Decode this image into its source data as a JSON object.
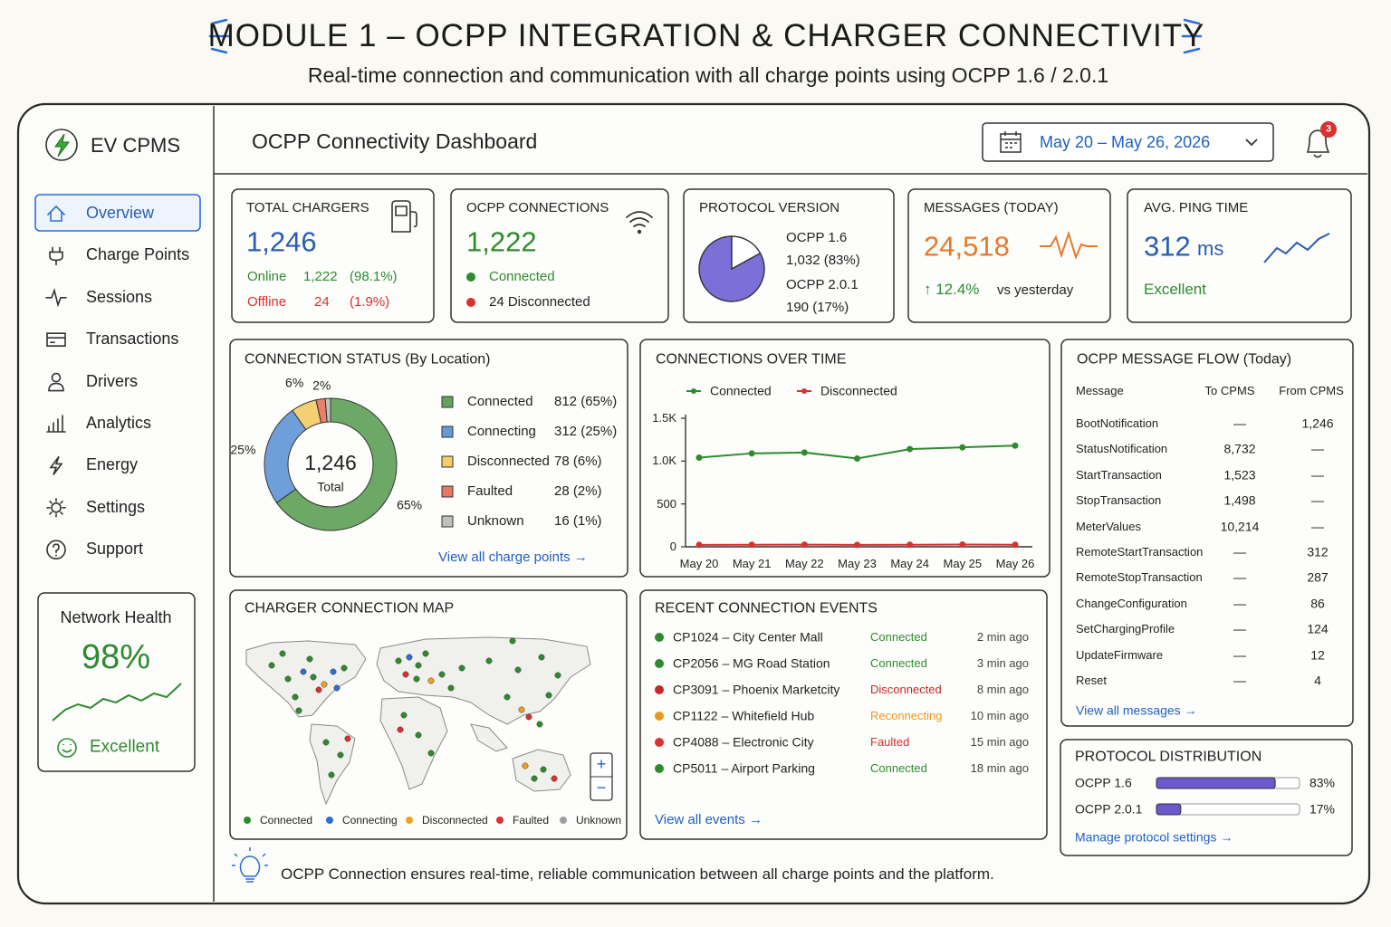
{
  "header": {
    "title": "MODULE 1 – OCPP INTEGRATION & CHARGER CONNECTIVITY",
    "subtitle": "Real-time connection and communication with all charge points using OCPP 1.6 / 2.0.1"
  },
  "sidebar": {
    "brand": "EV CPMS",
    "nav": [
      "Overview",
      "Charge Points",
      "Sessions",
      "Transactions",
      "Drivers",
      "Analytics",
      "Energy",
      "Settings",
      "Support"
    ],
    "health": {
      "title": "Network Health",
      "value": "98%",
      "status": "Excellent"
    }
  },
  "topbar": {
    "title": "OCPP Connectivity Dashboard",
    "date_range": "May 20 – May 26, 2026",
    "notifications": "3"
  },
  "kpis": {
    "total_chargers": {
      "title": "TOTAL CHARGERS",
      "value": "1,246",
      "lines": [
        {
          "label": "Online",
          "count": "1,222",
          "percent": "(98.1%)"
        },
        {
          "label": "Offline",
          "count": "24",
          "percent": "(1.9%)"
        }
      ]
    },
    "ocpp_connections": {
      "title": "OCPP CONNECTIONS",
      "value": "1,222",
      "connected": "Connected",
      "disconnected": "24 Disconnected"
    },
    "protocol_version": {
      "title": "PROTOCOL VERSION",
      "lines": [
        "OCPP 1.6",
        "1,032 (83%)",
        "OCPP 2.0.1",
        "190 (17%)"
      ]
    },
    "messages": {
      "title": "MESSAGES (TODAY)",
      "value": "24,518",
      "change": "↑ 12.4%",
      "note": "vs yesterday"
    },
    "ping": {
      "title": "AVG. PING TIME",
      "value": "312",
      "unit": "ms",
      "status": "Excellent"
    }
  },
  "chart_data": [
    {
      "type": "pie",
      "title": "CONNECTION STATUS (By Location)",
      "center_value": "1,246",
      "center_label": "Total",
      "categories": [
        "Connected",
        "Connecting",
        "Disconnected",
        "Faulted",
        "Unknown"
      ],
      "values": [
        812,
        312,
        78,
        28,
        16
      ],
      "value_labels": [
        "812 (65%)",
        "312 (25%)",
        "78 (6%)",
        "28 (2%)",
        "16 (1%)"
      ],
      "percent_labels": [
        "65%",
        "25%",
        "6%",
        "2%",
        null
      ],
      "colors": [
        "#3c8c34",
        "#3f7fcf",
        "#f0c045",
        "#e0553a",
        "#b0b0b0"
      ],
      "link": "View all charge points →"
    },
    {
      "type": "line",
      "title": "CONNECTIONS OVER TIME",
      "categories": [
        "May 20",
        "May 21",
        "May 22",
        "May 23",
        "May 24",
        "May 25",
        "May 26"
      ],
      "series": [
        {
          "name": "Connected",
          "color": "#2e8b2e",
          "values": [
            1040,
            1090,
            1100,
            1030,
            1140,
            1160,
            1180
          ]
        },
        {
          "name": "Disconnected",
          "color": "#d93030",
          "values": [
            22,
            24,
            25,
            23,
            24,
            26,
            24
          ]
        }
      ],
      "ylim": [
        0,
        1500
      ],
      "yticks": [
        0,
        500,
        {
          "value": 1000,
          "label": "1.0K"
        },
        {
          "value": 1500,
          "label": "1.5K"
        }
      ]
    }
  ],
  "message_flow": {
    "title": "OCPP MESSAGE FLOW (Today)",
    "columns": [
      "Message",
      "To CPMS",
      "From CPMS"
    ],
    "rows": [
      [
        "BootNotification",
        "—",
        "1,246"
      ],
      [
        "StatusNotification",
        "8,732",
        "—"
      ],
      [
        "StartTransaction",
        "1,523",
        "—"
      ],
      [
        "StopTransaction",
        "1,498",
        "—"
      ],
      [
        "MeterValues",
        "10,214",
        "—"
      ],
      [
        "RemoteStartTransaction",
        "—",
        "312"
      ],
      [
        "RemoteStopTransaction",
        "—",
        "287"
      ],
      [
        "ChangeConfiguration",
        "—",
        "86"
      ],
      [
        "SetChargingProfile",
        "—",
        "124"
      ],
      [
        "UpdateFirmware",
        "—",
        "12"
      ],
      [
        "Reset",
        "—",
        "4"
      ]
    ],
    "link": "View all messages →"
  },
  "protocol_distribution": {
    "title": "PROTOCOL DISTRIBUTION",
    "rows": [
      {
        "name": "OCPP 1.6",
        "value": 83,
        "label": "83%"
      },
      {
        "name": "OCPP 2.0.1",
        "value": 17,
        "label": "17%"
      }
    ],
    "color": "#6a5acd",
    "link": "Manage protocol settings →"
  },
  "map": {
    "title": "CHARGER CONNECTION MAP",
    "legend": [
      {
        "name": "Connected",
        "color": "#2e8b2e"
      },
      {
        "name": "Connecting",
        "color": "#2f6fd0"
      },
      {
        "name": "Disconnected",
        "color": "#f0a020"
      },
      {
        "name": "Faulted",
        "color": "#d93030"
      },
      {
        "name": "Unknown",
        "color": "#a0a0a0"
      }
    ],
    "zoom": [
      "+",
      "−"
    ]
  },
  "events": {
    "title": "RECENT CONNECTION EVENTS",
    "rows": [
      {
        "charger": "CP1024 – City Center Mall",
        "status": "Connected",
        "time": "2 min ago",
        "color": "#2e8b2e"
      },
      {
        "charger": "CP2056 – MG Road Station",
        "status": "Connected",
        "time": "3 min ago",
        "color": "#2e8b2e"
      },
      {
        "charger": "CP3091 – Phoenix Marketcity",
        "status": "Disconnected",
        "time": "8 min ago",
        "color": "#c62828"
      },
      {
        "charger": "CP1122 – Whitefield Hub",
        "status": "Reconnecting",
        "time": "10 min ago",
        "color": "#e89a20"
      },
      {
        "charger": "CP4088 – Electronic City",
        "status": "Faulted",
        "time": "15 min ago",
        "color": "#d93030"
      },
      {
        "charger": "CP5011 – Airport Parking",
        "status": "Connected",
        "time": "18 min ago",
        "color": "#2e8b2e"
      }
    ],
    "link": "View all events →"
  },
  "footer": "OCPP Connection ensures real-time, reliable communication between all charge points and the platform."
}
